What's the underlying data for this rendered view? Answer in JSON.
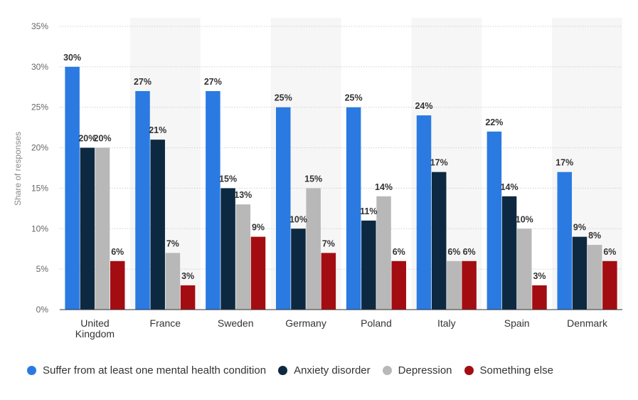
{
  "chart_data": {
    "type": "bar",
    "title": "",
    "xlabel": "",
    "ylabel": "Share of responses",
    "ylim": [
      0,
      35
    ],
    "yticks": [
      "0%",
      "5%",
      "10%",
      "15%",
      "20%",
      "25%",
      "30%",
      "35%"
    ],
    "grid": true,
    "categories": [
      [
        "United",
        "Kingdom"
      ],
      [
        "France"
      ],
      [
        "Sweden"
      ],
      [
        "Germany"
      ],
      [
        "Poland"
      ],
      [
        "Italy"
      ],
      [
        "Spain"
      ],
      [
        "Denmark"
      ]
    ],
    "series": [
      {
        "name": "Suffer from at least one mental health condition",
        "color": "#2a7ae2",
        "values": [
          30,
          27,
          27,
          25,
          25,
          24,
          22,
          17
        ]
      },
      {
        "name": "Anxiety disorder",
        "color": "#0d2941",
        "values": [
          20,
          21,
          15,
          10,
          11,
          17,
          14,
          9
        ]
      },
      {
        "name": "Depression",
        "color": "#b8b8b8",
        "values": [
          20,
          7,
          13,
          15,
          14,
          6,
          10,
          8
        ]
      },
      {
        "name": "Something else",
        "color": "#a30d12",
        "values": [
          6,
          3,
          9,
          7,
          6,
          6,
          3,
          6
        ]
      }
    ],
    "value_suffix": "%",
    "legend_position": "bottom"
  }
}
